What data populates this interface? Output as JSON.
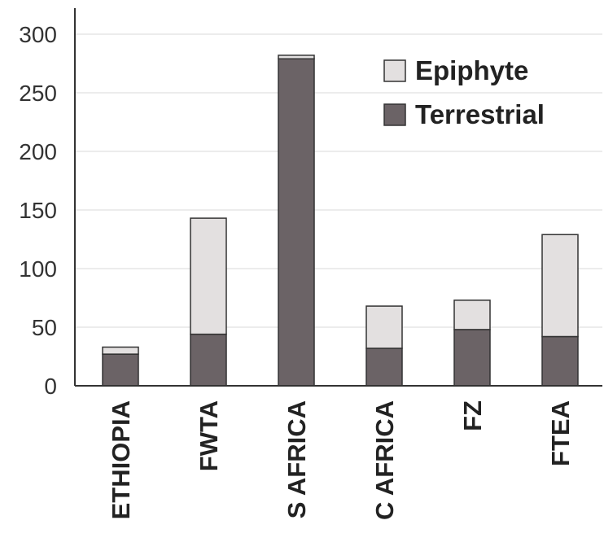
{
  "chart_data": {
    "type": "bar",
    "stacked": true,
    "categories": [
      "ETHIOPIA",
      "FWTA",
      "S AFRICA",
      "C AFRICA",
      "FZ",
      "FTEA"
    ],
    "series": [
      {
        "name": "Terrestrial",
        "color": "#6b6366",
        "values": [
          27,
          44,
          279,
          32,
          48,
          42
        ]
      },
      {
        "name": "Epiphyte",
        "color": "#e3e0e0",
        "values": [
          6,
          99,
          3,
          36,
          25,
          87
        ]
      }
    ],
    "yticks": [
      0,
      50,
      100,
      150,
      200,
      250,
      300
    ],
    "ylim": [
      0,
      300
    ],
    "grid": true,
    "legend_position": "top-right",
    "legend_order": [
      "Epiphyte",
      "Terrestrial"
    ],
    "xlabel": "",
    "ylabel": "",
    "title": ""
  }
}
